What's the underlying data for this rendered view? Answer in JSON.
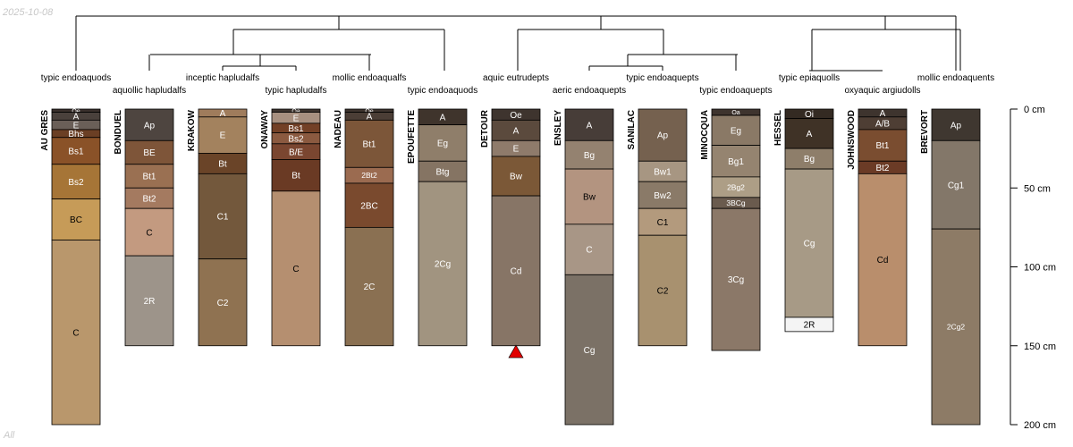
{
  "date_stamp": "2025-10-08",
  "footer_label": "All",
  "depth_axis": {
    "unit": "cm",
    "max_depth": 200,
    "ticks": [
      {
        "depth": 0,
        "label": "0 cm"
      },
      {
        "depth": 50,
        "label": "50 cm"
      },
      {
        "depth": 100,
        "label": "100 cm"
      },
      {
        "depth": 150,
        "label": "150 cm"
      },
      {
        "depth": 200,
        "label": "200 cm"
      }
    ]
  },
  "profiles": [
    {
      "id": "AU GRES",
      "classification": "typic endoaquods",
      "horizons": [
        {
          "name": "Oe",
          "top": 0,
          "bottom": 2,
          "color": "#3a302c",
          "text": "#ffffff"
        },
        {
          "name": "A",
          "top": 2,
          "bottom": 7,
          "color": "#4a413c",
          "text": "#ffffff"
        },
        {
          "name": "E",
          "top": 7,
          "bottom": 13,
          "color": "#6a5f58",
          "text": "#ffffff"
        },
        {
          "name": "Bhs",
          "top": 13,
          "bottom": 18,
          "color": "#6b3f24",
          "text": "#ffffff"
        },
        {
          "name": "Bs1",
          "top": 18,
          "bottom": 35,
          "color": "#8a5228",
          "text": "#ffffff"
        },
        {
          "name": "Bs2",
          "top": 35,
          "bottom": 57,
          "color": "#a67537",
          "text": "#ffffff"
        },
        {
          "name": "BC",
          "top": 57,
          "bottom": 83,
          "color": "#c69b58",
          "text": "#000000"
        },
        {
          "name": "C",
          "top": 83,
          "bottom": 200,
          "color": "#b9976c",
          "text": "#000000"
        }
      ]
    },
    {
      "id": "BONDUEL",
      "classification": "aquollic hapludalfs",
      "horizons": [
        {
          "name": "Ap",
          "top": 0,
          "bottom": 20,
          "color": "#4e4540",
          "text": "#ffffff"
        },
        {
          "name": "BE",
          "top": 20,
          "bottom": 35,
          "color": "#7e5539",
          "text": "#ffffff"
        },
        {
          "name": "Bt1",
          "top": 35,
          "bottom": 50,
          "color": "#9a7052",
          "text": "#ffffff"
        },
        {
          "name": "Bt2",
          "top": 50,
          "bottom": 63,
          "color": "#a47a60",
          "text": "#ffffff"
        },
        {
          "name": "C",
          "top": 63,
          "bottom": 93,
          "color": "#c39a80",
          "text": "#000000"
        },
        {
          "name": "2R",
          "top": 93,
          "bottom": 150,
          "color": "#9d948a",
          "text": "#ffffff"
        }
      ]
    },
    {
      "id": "KRAKOW",
      "classification": "inceptic hapludalfs",
      "horizons": [
        {
          "name": "A",
          "top": 0,
          "bottom": 5,
          "color": "#9f7c5c",
          "text": "#ffffff"
        },
        {
          "name": "E",
          "top": 5,
          "bottom": 28,
          "color": "#a3825e",
          "text": "#ffffff"
        },
        {
          "name": "Bt",
          "top": 28,
          "bottom": 41,
          "color": "#6a4428",
          "text": "#ffffff"
        },
        {
          "name": "C1",
          "top": 41,
          "bottom": 95,
          "color": "#73583c",
          "text": "#ffffff"
        },
        {
          "name": "C2",
          "top": 95,
          "bottom": 150,
          "color": "#8f7251",
          "text": "#ffffff"
        }
      ]
    },
    {
      "id": "ONAWAY",
      "classification": "typic hapludalfs",
      "horizons": [
        {
          "name": "Oa",
          "top": 0,
          "bottom": 2,
          "color": "#3e342e",
          "text": "#ffffff"
        },
        {
          "name": "E",
          "top": 2,
          "bottom": 9,
          "color": "#a89080",
          "text": "#ffffff"
        },
        {
          "name": "Bs1",
          "top": 9,
          "bottom": 15,
          "color": "#734026",
          "text": "#ffffff"
        },
        {
          "name": "Bs2",
          "top": 15,
          "bottom": 22,
          "color": "#8b5a40",
          "text": "#ffffff"
        },
        {
          "name": "B/E",
          "top": 22,
          "bottom": 32,
          "color": "#7a4630",
          "text": "#ffffff"
        },
        {
          "name": "Bt",
          "top": 32,
          "bottom": 52,
          "color": "#6a3a24",
          "text": "#ffffff"
        },
        {
          "name": "C",
          "top": 52,
          "bottom": 150,
          "color": "#b58f70",
          "text": "#000000"
        }
      ]
    },
    {
      "id": "NADEAU",
      "classification": "mollic endoaqualfs",
      "horizons": [
        {
          "name": "Oe",
          "top": 0,
          "bottom": 2,
          "color": "#3e342e",
          "text": "#ffffff"
        },
        {
          "name": "A",
          "top": 2,
          "bottom": 7,
          "color": "#4b3e36",
          "text": "#ffffff"
        },
        {
          "name": "Bt1",
          "top": 7,
          "bottom": 37,
          "color": "#7c5639",
          "text": "#ffffff"
        },
        {
          "name": "2Bt2",
          "top": 37,
          "bottom": 47,
          "color": "#9b6b50",
          "text": "#ffffff"
        },
        {
          "name": "2BC",
          "top": 47,
          "bottom": 75,
          "color": "#7a4a2e",
          "text": "#ffffff"
        },
        {
          "name": "2C",
          "top": 75,
          "bottom": 150,
          "color": "#8a7052",
          "text": "#ffffff"
        }
      ]
    },
    {
      "id": "EPOUFETTE",
      "classification": "typic endoaquods",
      "horizons": [
        {
          "name": "A",
          "top": 0,
          "bottom": 10,
          "color": "#3f342c",
          "text": "#ffffff"
        },
        {
          "name": "Eg",
          "top": 10,
          "bottom": 33,
          "color": "#8f7e6a",
          "text": "#ffffff"
        },
        {
          "name": "Btg",
          "top": 33,
          "bottom": 46,
          "color": "#857463",
          "text": "#ffffff"
        },
        {
          "name": "2Cg",
          "top": 46,
          "bottom": 150,
          "color": "#a19480",
          "text": "#ffffff"
        }
      ]
    },
    {
      "id": "DETOUR",
      "classification": "aquic eutrudepts",
      "horizons": [
        {
          "name": "Oe",
          "top": 0,
          "bottom": 7,
          "color": "#3e342e",
          "text": "#ffffff"
        },
        {
          "name": "A",
          "top": 7,
          "bottom": 20,
          "color": "#5b4a3d",
          "text": "#ffffff"
        },
        {
          "name": "E",
          "top": 20,
          "bottom": 30,
          "color": "#8f7b6b",
          "text": "#ffffff"
        },
        {
          "name": "Bw",
          "top": 30,
          "bottom": 55,
          "color": "#7b5837",
          "text": "#ffffff"
        },
        {
          "name": "Cd",
          "top": 55,
          "bottom": 150,
          "color": "#877566",
          "text": "#ffffff"
        }
      ]
    },
    {
      "id": "ENSLEY",
      "classification": "aeric endoaquepts",
      "horizons": [
        {
          "name": "A",
          "top": 0,
          "bottom": 20,
          "color": "#473d38",
          "text": "#ffffff"
        },
        {
          "name": "Bg",
          "top": 20,
          "bottom": 38,
          "color": "#948270",
          "text": "#ffffff"
        },
        {
          "name": "Bw",
          "top": 38,
          "bottom": 73,
          "color": "#b39480",
          "text": "#000000"
        },
        {
          "name": "C",
          "top": 73,
          "bottom": 105,
          "color": "#a89686",
          "text": "#ffffff"
        },
        {
          "name": "Cg",
          "top": 105,
          "bottom": 200,
          "color": "#7b7166",
          "text": "#ffffff"
        }
      ]
    },
    {
      "id": "SANILAC",
      "classification": "typic endoaquepts",
      "horizons": [
        {
          "name": "Ap",
          "top": 0,
          "bottom": 33,
          "color": "#75614f",
          "text": "#ffffff"
        },
        {
          "name": "Bw1",
          "top": 33,
          "bottom": 46,
          "color": "#a79682",
          "text": "#ffffff"
        },
        {
          "name": "Bw2",
          "top": 46,
          "bottom": 63,
          "color": "#8a7a68",
          "text": "#ffffff"
        },
        {
          "name": "C1",
          "top": 63,
          "bottom": 80,
          "color": "#b39a7d",
          "text": "#000000"
        },
        {
          "name": "C2",
          "top": 80,
          "bottom": 150,
          "color": "#a8916f",
          "text": "#000000"
        }
      ]
    },
    {
      "id": "MINOCQUA",
      "classification": "typic endoaquepts",
      "horizons": [
        {
          "name": "Oa",
          "top": 0,
          "bottom": 4,
          "color": "#3e342e",
          "text": "#ffffff"
        },
        {
          "name": "Eg",
          "top": 4,
          "bottom": 23,
          "color": "#8a7966",
          "text": "#ffffff"
        },
        {
          "name": "Bg1",
          "top": 23,
          "bottom": 43,
          "color": "#958470",
          "text": "#ffffff"
        },
        {
          "name": "2Bg2",
          "top": 43,
          "bottom": 56,
          "color": "#ad9e86",
          "text": "#ffffff"
        },
        {
          "name": "3BCg",
          "top": 56,
          "bottom": 63,
          "color": "#6a5b4e",
          "text": "#ffffff"
        },
        {
          "name": "3Cg",
          "top": 63,
          "bottom": 153,
          "color": "#8b7868",
          "text": "#ffffff"
        }
      ]
    },
    {
      "id": "HESSEL",
      "classification": "typic epiaquolls",
      "horizons": [
        {
          "name": "Oi",
          "top": 0,
          "bottom": 6,
          "color": "#342a22",
          "text": "#ffffff"
        },
        {
          "name": "A",
          "top": 6,
          "bottom": 25,
          "color": "#3f3226",
          "text": "#ffffff"
        },
        {
          "name": "Bg",
          "top": 25,
          "bottom": 38,
          "color": "#8e7e6a",
          "text": "#ffffff"
        },
        {
          "name": "Cg",
          "top": 38,
          "bottom": 132,
          "color": "#a79a86",
          "text": "#ffffff"
        },
        {
          "name": "2R",
          "top": 132,
          "bottom": 141,
          "color": "#f4f4f4",
          "text": "#000000"
        }
      ]
    },
    {
      "id": "JOHNSWOOD",
      "classification": "oxyaquic argiudolls",
      "horizons": [
        {
          "name": "A",
          "top": 0,
          "bottom": 5,
          "color": "#3e342e",
          "text": "#ffffff"
        },
        {
          "name": "A/B",
          "top": 5,
          "bottom": 13,
          "color": "#4e3e34",
          "text": "#ffffff"
        },
        {
          "name": "Bt1",
          "top": 13,
          "bottom": 33,
          "color": "#7a4d30",
          "text": "#ffffff"
        },
        {
          "name": "Bt2",
          "top": 33,
          "bottom": 41,
          "color": "#6b3b26",
          "text": "#ffffff"
        },
        {
          "name": "Cd",
          "top": 41,
          "bottom": 150,
          "color": "#b98e6c",
          "text": "#000000"
        }
      ]
    },
    {
      "id": "BREVORT",
      "classification": "mollic endoaquents",
      "horizons": [
        {
          "name": "Ap",
          "top": 0,
          "bottom": 20,
          "color": "#3f3730",
          "text": "#ffffff"
        },
        {
          "name": "Cg1",
          "top": 20,
          "bottom": 76,
          "color": "#837769",
          "text": "#ffffff"
        },
        {
          "name": "2Cg2",
          "top": 76,
          "bottom": 200,
          "color": "#8d7b66",
          "text": "#ffffff"
        }
      ]
    }
  ],
  "markers": [
    {
      "profile": "DETOUR",
      "type": "triangle",
      "color": "#e10000",
      "depth": 153
    }
  ]
}
